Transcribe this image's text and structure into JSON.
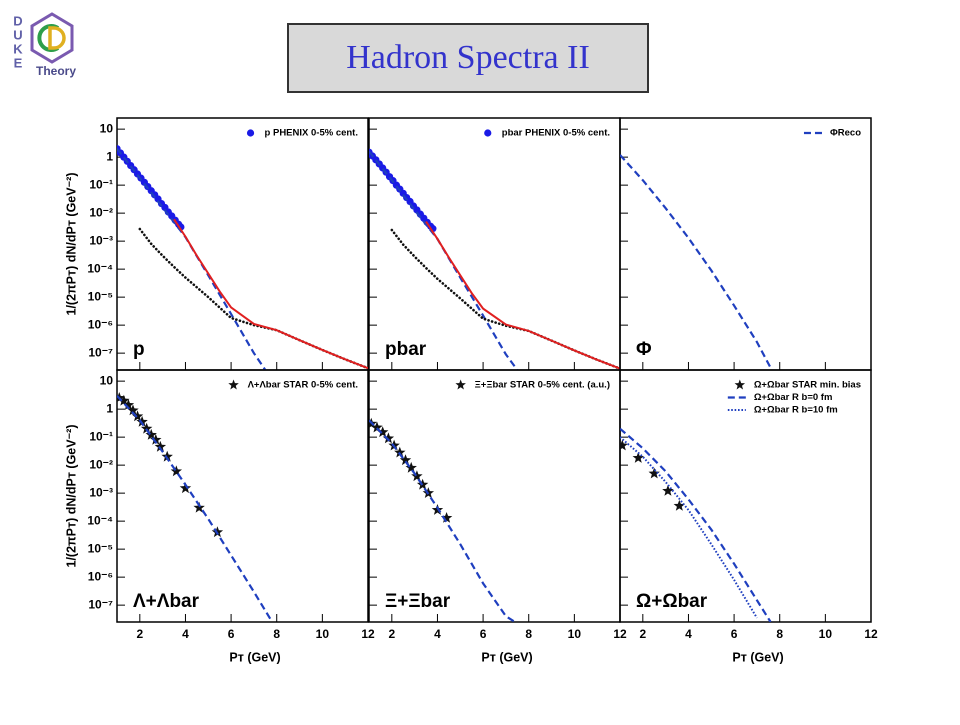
{
  "slide": {
    "title": "Hadron Spectra II",
    "logo": {
      "letters": [
        "D",
        "U",
        "K",
        "E"
      ],
      "word": "Theory"
    }
  },
  "chart_data": [
    {
      "type": "scatter",
      "label": "p",
      "log_y": true,
      "xlim": [
        1,
        12
      ],
      "ylim": [
        2.5e-08,
        25
      ],
      "xticks": [
        2,
        4,
        6,
        8,
        10,
        12
      ],
      "yticks": [
        10,
        1,
        {
          "value": 0.1,
          "label": "10⁻¹"
        },
        {
          "value": 0.01,
          "label": "10⁻²"
        },
        {
          "value": 0.001,
          "label": "10⁻³"
        },
        {
          "value": 0.0001,
          "label": "10⁻⁴"
        },
        {
          "value": 1e-05,
          "label": "10⁻⁵"
        },
        {
          "value": 1e-06,
          "label": "10⁻⁶"
        },
        {
          "value": 1e-07,
          "label": "10⁻⁷"
        }
      ],
      "ylabel": "1/(2πPᴛ) dN/dPᴛ (GeV⁻²)",
      "series": [
        {
          "name": "p PHENIX 0-5% cent.",
          "color": "#1a1ae6",
          "style": "points",
          "x": [
            1.0,
            1.15,
            1.3,
            1.45,
            1.6,
            1.75,
            1.9,
            2.05,
            2.2,
            2.35,
            2.5,
            2.65,
            2.8,
            2.95,
            3.1,
            3.25,
            3.4,
            3.55,
            3.7,
            3.8
          ],
          "values": [
            2.0,
            1.41,
            1.0,
            0.71,
            0.5,
            0.355,
            0.25,
            0.178,
            0.126,
            0.089,
            0.063,
            0.045,
            0.032,
            0.022,
            0.016,
            0.011,
            0.0079,
            0.0056,
            0.004,
            0.0032
          ]
        },
        {
          "color": "#1f3fbf",
          "style": "dashed",
          "x": [
            1,
            2,
            3,
            4,
            5,
            6,
            7,
            7.5
          ],
          "values": [
            2,
            0.18,
            0.016,
            0.0014,
            6e-05,
            2.5e-06,
            1e-07,
            2.5e-08
          ]
        },
        {
          "color": "#111111",
          "style": "dotted",
          "x": [
            2,
            2.5,
            3,
            3.5,
            4,
            5,
            6,
            7,
            8,
            9,
            10,
            11,
            12
          ],
          "values": [
            0.0027,
            0.0008,
            0.0003,
            0.00012,
            5e-05,
            1e-05,
            1.8e-06,
            1e-06,
            6.6e-07,
            2.9e-07,
            1.3e-07,
            6e-08,
            2.9e-08
          ]
        },
        {
          "color": "#e02020",
          "style": "solid",
          "x": [
            3.5,
            4,
            4.5,
            5,
            5.5,
            6,
            7,
            8,
            9,
            10,
            11,
            12
          ],
          "values": [
            0.006,
            0.00145,
            0.0003,
            7e-05,
            1.6e-05,
            4.3e-06,
            1.1e-06,
            6.6e-07,
            2.9e-07,
            1.3e-07,
            6e-08,
            2.9e-08
          ]
        }
      ]
    },
    {
      "type": "scatter",
      "label": "pbar",
      "log_y": true,
      "xlim": [
        1,
        12
      ],
      "ylim": [
        2.5e-08,
        25
      ],
      "xticks": [
        2,
        4,
        6,
        8,
        10,
        12
      ],
      "yticks": [
        10,
        1,
        0.1,
        0.01,
        0.001,
        0.0001,
        1e-05,
        1e-06,
        1e-07
      ],
      "series": [
        {
          "name": "pbar PHENIX 0-5% cent.",
          "color": "#1a1ae6",
          "style": "points",
          "x": [
            1.0,
            1.15,
            1.3,
            1.45,
            1.6,
            1.75,
            1.9,
            2.05,
            2.2,
            2.35,
            2.5,
            2.65,
            2.8,
            2.95,
            3.1,
            3.25,
            3.4,
            3.55,
            3.7,
            3.8
          ],
          "values": [
            1.5,
            1.1,
            0.8,
            0.57,
            0.41,
            0.29,
            0.2,
            0.145,
            0.1,
            0.072,
            0.051,
            0.036,
            0.026,
            0.018,
            0.013,
            0.0092,
            0.0066,
            0.0047,
            0.0034,
            0.0028
          ]
        },
        {
          "color": "#1f3fbf",
          "style": "dashed",
          "x": [
            1,
            2,
            3,
            4,
            5,
            6,
            7,
            7.5
          ],
          "values": [
            1.6,
            0.15,
            0.013,
            0.0012,
            5e-05,
            2.2e-06,
            9e-08,
            2.5e-08
          ]
        },
        {
          "color": "#111111",
          "style": "dotted",
          "x": [
            2,
            2.5,
            3,
            3.5,
            4,
            5,
            6,
            7,
            8,
            9,
            10,
            11,
            12
          ],
          "values": [
            0.0025,
            0.00075,
            0.00028,
            0.00011,
            4.5e-05,
            9e-06,
            1.7e-06,
            9.5e-07,
            6.2e-07,
            2.8e-07,
            1.25e-07,
            5.8e-08,
            2.8e-08
          ]
        },
        {
          "color": "#e02020",
          "style": "solid",
          "x": [
            3.5,
            4,
            4.5,
            5,
            5.5,
            6,
            7,
            8,
            9,
            10,
            11,
            12
          ],
          "values": [
            0.005,
            0.0012,
            0.00026,
            6e-05,
            1.4e-05,
            3.9e-06,
            1.05e-06,
            6.2e-07,
            2.8e-07,
            1.25e-07,
            5.8e-08,
            2.8e-08
          ]
        }
      ]
    },
    {
      "type": "scatter",
      "label": "Φ",
      "log_y": true,
      "xlim": [
        1,
        12
      ],
      "ylim": [
        2.5e-08,
        25
      ],
      "xticks": [
        2,
        4,
        6,
        8,
        10,
        12
      ],
      "yticks": [
        10,
        1,
        0.1,
        0.01,
        0.001,
        0.0001,
        1e-05,
        1e-06,
        1e-07
      ],
      "series": [
        {
          "name": "ΦReco",
          "color": "#1f3fbf",
          "style": "dashed",
          "x": [
            1,
            2,
            3,
            4,
            5,
            6,
            7,
            7.6
          ],
          "values": [
            1.2,
            0.15,
            0.015,
            0.0013,
            9e-05,
            5e-06,
            2.5e-07,
            3e-08
          ]
        }
      ]
    },
    {
      "type": "scatter",
      "label": "Λ+Λbar",
      "log_y": true,
      "xlim": [
        1,
        12
      ],
      "ylim": [
        2.5e-08,
        25
      ],
      "xticks": [
        2,
        4,
        6,
        8,
        10,
        12
      ],
      "yticks": [
        10,
        1,
        {
          "value": 0.1,
          "label": "10⁻¹"
        },
        {
          "value": 0.01,
          "label": "10⁻²"
        },
        {
          "value": 0.001,
          "label": "10⁻³"
        },
        {
          "value": 0.0001,
          "label": "10⁻⁴"
        },
        {
          "value": 1e-05,
          "label": "10⁻⁵"
        },
        {
          "value": 1e-06,
          "label": "10⁻⁶"
        },
        {
          "value": 1e-07,
          "label": "10⁻⁷"
        }
      ],
      "ylabel": "1/(2πPᴛ) dN/dPᴛ (GeV⁻²)",
      "xlabel": "Pᴛ (GeV)",
      "series": [
        {
          "name": "Λ+Λbar STAR 0-5% cent.",
          "color": "#111111",
          "style": "stars",
          "x": [
            1.1,
            1.3,
            1.5,
            1.7,
            1.9,
            2.1,
            2.3,
            2.5,
            2.7,
            2.9,
            3.2,
            3.6,
            4.0,
            4.6,
            5.4
          ],
          "values": [
            2.5,
            2.0,
            1.4,
            0.9,
            0.55,
            0.35,
            0.2,
            0.12,
            0.08,
            0.045,
            0.02,
            0.006,
            0.0015,
            0.0003,
            4e-05
          ]
        },
        {
          "color": "#1f3fbf",
          "style": "dashed",
          "x": [
            1,
            2,
            3,
            4,
            5,
            6,
            7,
            7.8
          ],
          "values": [
            3,
            0.4,
            0.03,
            0.002,
            0.00012,
            6e-06,
            3e-07,
            2.5e-08
          ]
        }
      ]
    },
    {
      "type": "scatter",
      "label": "Ξ+Ξbar",
      "log_y": true,
      "xlim": [
        1,
        12
      ],
      "ylim": [
        2.5e-08,
        25
      ],
      "xticks": [
        2,
        4,
        6,
        8,
        10,
        12
      ],
      "yticks": [
        10,
        1,
        0.1,
        0.01,
        0.001,
        0.0001,
        1e-05,
        1e-06,
        1e-07
      ],
      "xlabel": "Pᴛ (GeV)",
      "series": [
        {
          "name": "Ξ+Ξbar STAR 0-5% cent. (a.u.)",
          "color": "#111111",
          "style": "stars",
          "x": [
            1.1,
            1.35,
            1.6,
            1.85,
            2.1,
            2.35,
            2.6,
            2.85,
            3.1,
            3.35,
            3.6,
            4.0,
            4.4
          ],
          "values": [
            0.3,
            0.22,
            0.15,
            0.09,
            0.05,
            0.028,
            0.015,
            0.008,
            0.004,
            0.002,
            0.001,
            0.00025,
            0.00013
          ]
        },
        {
          "color": "#1f3fbf",
          "style": "dashed",
          "x": [
            1,
            2,
            3,
            4,
            5,
            6,
            7,
            7.4
          ],
          "values": [
            0.4,
            0.06,
            0.005,
            0.0003,
            1.5e-05,
            6e-07,
            4e-08,
            2.5e-08
          ]
        }
      ]
    },
    {
      "type": "scatter",
      "label": "Ω+Ωbar",
      "log_y": true,
      "xlim": [
        1,
        12
      ],
      "ylim": [
        2.5e-08,
        25
      ],
      "xticks": [
        2,
        4,
        6,
        8,
        10,
        12
      ],
      "yticks": [
        10,
        1,
        0.1,
        0.01,
        0.001,
        0.0001,
        1e-05,
        1e-06,
        1e-07
      ],
      "xlabel": "Pᴛ (GeV)",
      "series": [
        {
          "name": "Ω+Ωbar STAR min. bias",
          "color": "#111111",
          "style": "stars",
          "x": [
            1.1,
            1.8,
            2.5,
            3.1,
            3.6
          ],
          "values": [
            0.05,
            0.018,
            0.005,
            0.0012,
            0.00035
          ]
        },
        {
          "name": "Ω+Ωbar R b=0 fm",
          "color": "#1f3fbf",
          "style": "dashed",
          "x": [
            1,
            2,
            3,
            4,
            5,
            6,
            7,
            7.6
          ],
          "values": [
            0.2,
            0.04,
            0.006,
            0.0006,
            5e-05,
            3e-06,
            1.5e-07,
            2.5e-08
          ]
        },
        {
          "name": "Ω+Ωbar R b=10 fm",
          "color": "#1f3fbf",
          "style": "dotted",
          "x": [
            1,
            2,
            3,
            4,
            5,
            6,
            7
          ],
          "values": [
            0.1,
            0.02,
            0.0025,
            0.00025,
            1.5e-05,
            8e-07,
            3.5e-08
          ]
        }
      ]
    }
  ]
}
